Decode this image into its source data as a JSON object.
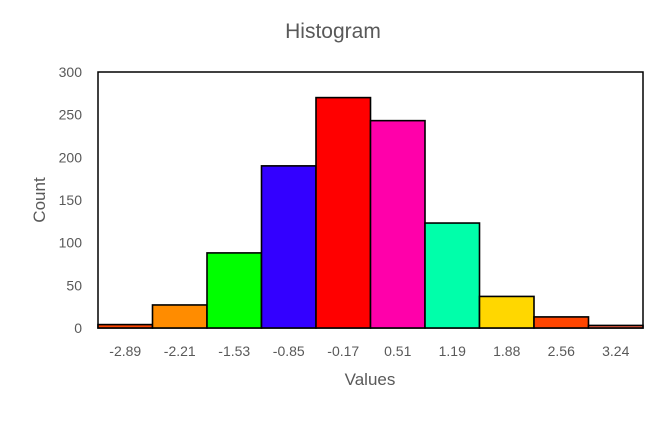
{
  "chart_data": {
    "type": "bar",
    "title": "Histogram",
    "xlabel": "Values",
    "ylabel": "Count",
    "categories": [
      "-2.89",
      "-2.21",
      "-1.53",
      "-0.85",
      "-0.17",
      "0.51",
      "1.19",
      "1.88",
      "2.56",
      "3.24"
    ],
    "values": [
      4,
      27,
      88,
      190,
      270,
      243,
      123,
      37,
      13,
      3
    ],
    "ylim": [
      0,
      300
    ],
    "yticks": [
      0,
      50,
      100,
      150,
      200,
      250,
      300
    ],
    "colors": [
      "#ff4500",
      "#ff8c00",
      "#00ff00",
      "#3300ff",
      "#ff0000",
      "#ff00aa",
      "#00ffaa",
      "#ffd700",
      "#ff4500",
      "#ff6347"
    ],
    "grid": false,
    "legend": "none"
  }
}
